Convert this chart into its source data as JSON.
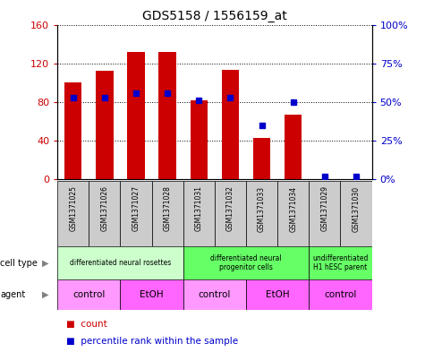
{
  "title": "GDS5158 / 1556159_at",
  "samples": [
    "GSM1371025",
    "GSM1371026",
    "GSM1371027",
    "GSM1371028",
    "GSM1371031",
    "GSM1371032",
    "GSM1371033",
    "GSM1371034",
    "GSM1371029",
    "GSM1371030"
  ],
  "counts": [
    100,
    112,
    132,
    132,
    82,
    113,
    43,
    67,
    0,
    0
  ],
  "percentiles": [
    53,
    53,
    56,
    56,
    51,
    53,
    35,
    50,
    2,
    2
  ],
  "ylim_left": [
    0,
    160
  ],
  "ylim_right": [
    0,
    100
  ],
  "yticks_left": [
    0,
    40,
    80,
    120,
    160
  ],
  "yticks_right": [
    0,
    25,
    50,
    75,
    100
  ],
  "ytick_labels_left": [
    "0",
    "40",
    "80",
    "120",
    "160"
  ],
  "ytick_labels_right": [
    "0%",
    "25%",
    "50%",
    "75%",
    "100%"
  ],
  "bar_color": "#cc0000",
  "dot_color": "#0000cc",
  "cell_type_groups": [
    {
      "label": "differentiated neural rosettes",
      "start": 0,
      "end": 4,
      "color": "#ccffcc"
    },
    {
      "label": "differentiated neural\nprogenitor cells",
      "start": 4,
      "end": 8,
      "color": "#66ff66"
    },
    {
      "label": "undifferentiated\nH1 hESC parent",
      "start": 8,
      "end": 10,
      "color": "#66ff66"
    }
  ],
  "agent_groups": [
    {
      "label": "control",
      "start": 0,
      "end": 2,
      "color": "#ff99ff"
    },
    {
      "label": "EtOH",
      "start": 2,
      "end": 4,
      "color": "#ff66ff"
    },
    {
      "label": "control",
      "start": 4,
      "end": 6,
      "color": "#ff99ff"
    },
    {
      "label": "EtOH",
      "start": 6,
      "end": 8,
      "color": "#ff66ff"
    },
    {
      "label": "control",
      "start": 8,
      "end": 10,
      "color": "#ff66ff"
    }
  ],
  "grid_color": "#000000",
  "sample_bg_color": "#cccccc"
}
